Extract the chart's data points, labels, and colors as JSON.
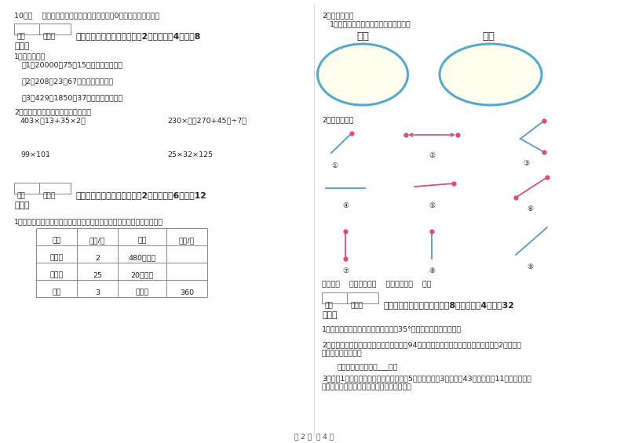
{
  "bg_color": "#ffffff",
  "text_color": "#222222",
  "page_num": "第 2 页  共 4 页",
  "left_col": {
    "q10": "10．（    ）等式两边同时乘以或除以一个数（0除外）等式仍成立。",
    "section4_title": "四、看清题目，细心计算（共2小题，每题4分，共8",
    "section4_sub": "分）。",
    "s4_q1": "1、列式计算。",
    "s4_q1_1": "（1）20000减75乘15的积，差是多少？",
    "s4_q1_2": "（2）208乘23与67的和，积是多少？",
    "s4_q1_3": "（3）429加1850与37的商，和是多少？",
    "s4_q2": "2、计算下面各题，能简算的要简算。",
    "s4_q2_a": "403×（13+35×2）",
    "s4_q2_b": "230×【（270+45）÷7】",
    "s4_q2_c": "99×101",
    "s4_q2_d": "25×32×125",
    "section5_title": "五、认真思考，综合能力（共2小题，每题6分，共12",
    "section5_sub": "分）。",
    "s5_q1": "1、文具店一个月卖出的几种文具情况如下表，请在空格中填上适当的数。",
    "table_headers": [
      "品名",
      "单价/元",
      "数量",
      "总价/元"
    ],
    "table_rows": [
      [
        "笔记本",
        "2",
        "480（本）",
        ""
      ],
      [
        "计算器",
        "25",
        "20（台）",
        ""
      ],
      [
        "水笔",
        "3",
        "（支）",
        "360"
      ]
    ]
  },
  "right_col": {
    "s3_q2_head": "2、综合训练。",
    "s3_q2_1": "1、把下面的各角度数填入相应的圈里。",
    "circle1_label": "锐角",
    "circle2_label": "钝角",
    "s3_q2_2": "2、看图填空。",
    "bottom_text": "直线有（    ），射线有（    ），线段有（    ）。",
    "section6_title": "六、应用知识，解决问题（共8小题，每题4分，共32",
    "section6_sub": "分）。",
    "s6_q1": "1、已知一个等腰三角形的一个底角是35°，求其他两个角的度数？",
    "s6_q2_line1": "2、王兵参加考试，面四门功课的平均分是94分，英语成绩宣布后，她的平均分下降了2分，王兵",
    "s6_q2_line2": "的英语考了多少分？",
    "s6_q2_ans": "答：王兵的英语考了___分。",
    "s6_q3_line1": "3、四（1）班同学去公园划船，大船限坐5人，小船限坐3人，全班43人，共租了11条船，大船、",
    "s6_q3_line2": "小船正好都坐满，问大船、小船各租了几条？"
  }
}
